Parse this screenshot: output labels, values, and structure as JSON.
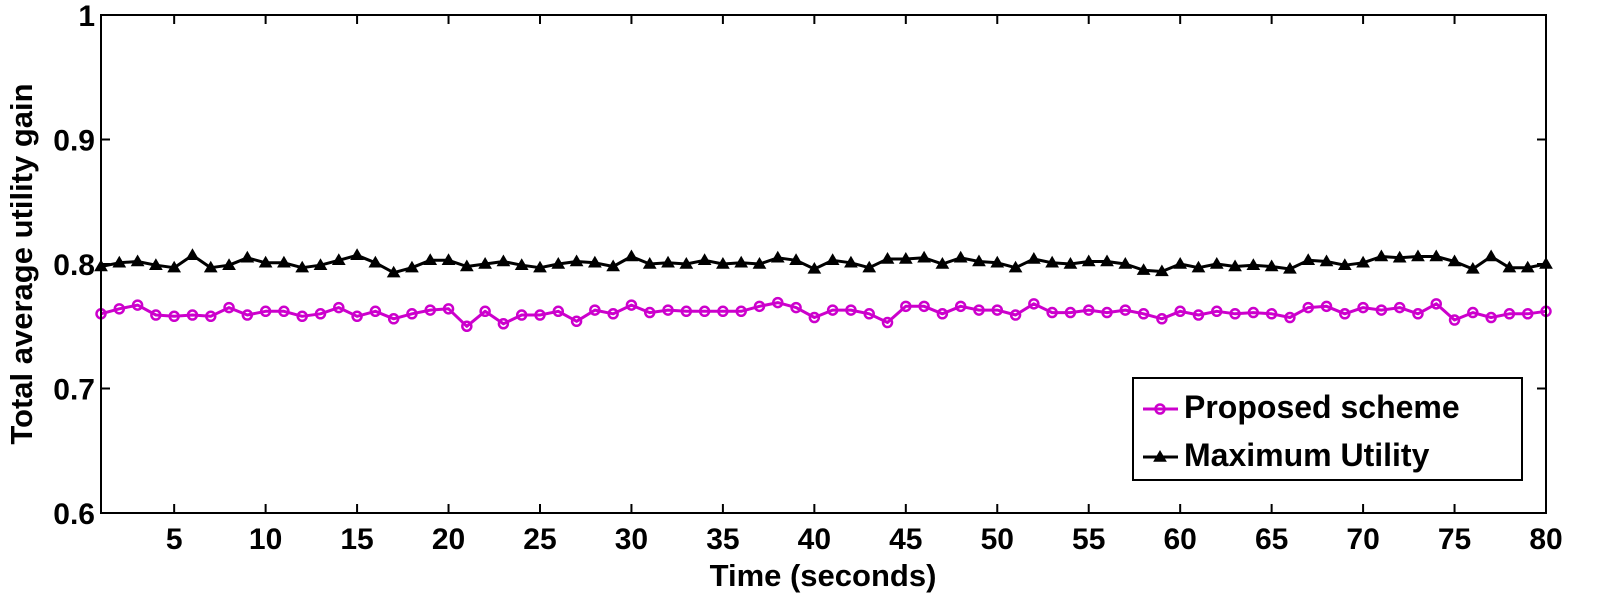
{
  "chart_data": {
    "type": "line",
    "title": "",
    "xlabel": "Time (seconds)",
    "ylabel": "Total average utility gain",
    "xlim": [
      1,
      80
    ],
    "ylim": [
      0.6,
      1.0
    ],
    "xticks": [
      5,
      10,
      15,
      20,
      25,
      30,
      35,
      40,
      45,
      50,
      55,
      60,
      65,
      70,
      75,
      80
    ],
    "yticks": [
      0.6,
      0.7,
      0.8,
      0.9,
      1.0
    ],
    "ytick_labels": [
      "0.6",
      "0.7",
      "0.8",
      "0.9",
      "1"
    ],
    "grid": false,
    "legend_position": "bottom-right",
    "x": [
      1,
      2,
      3,
      4,
      5,
      6,
      7,
      8,
      9,
      10,
      11,
      12,
      13,
      14,
      15,
      16,
      17,
      18,
      19,
      20,
      21,
      22,
      23,
      24,
      25,
      26,
      27,
      28,
      29,
      30,
      31,
      32,
      33,
      34,
      35,
      36,
      37,
      38,
      39,
      40,
      41,
      42,
      43,
      44,
      45,
      46,
      47,
      48,
      49,
      50,
      51,
      52,
      53,
      54,
      55,
      56,
      57,
      58,
      59,
      60,
      61,
      62,
      63,
      64,
      65,
      66,
      67,
      68,
      69,
      70,
      71,
      72,
      73,
      74,
      75,
      76,
      77,
      78,
      79,
      80
    ],
    "series": [
      {
        "name": "Proposed scheme",
        "color": "#cc00cc",
        "marker": "circle",
        "values": [
          0.76,
          0.764,
          0.767,
          0.759,
          0.758,
          0.759,
          0.758,
          0.765,
          0.759,
          0.762,
          0.762,
          0.758,
          0.76,
          0.765,
          0.758,
          0.762,
          0.756,
          0.76,
          0.763,
          0.764,
          0.75,
          0.762,
          0.752,
          0.759,
          0.759,
          0.762,
          0.754,
          0.763,
          0.76,
          0.767,
          0.761,
          0.763,
          0.762,
          0.762,
          0.762,
          0.762,
          0.766,
          0.769,
          0.765,
          0.757,
          0.763,
          0.763,
          0.76,
          0.753,
          0.766,
          0.766,
          0.76,
          0.766,
          0.763,
          0.763,
          0.759,
          0.768,
          0.761,
          0.761,
          0.763,
          0.761,
          0.763,
          0.76,
          0.756,
          0.762,
          0.759,
          0.762,
          0.76,
          0.761,
          0.76,
          0.757,
          0.765,
          0.766,
          0.76,
          0.765,
          0.763,
          0.765,
          0.76,
          0.768,
          0.755,
          0.761,
          0.757,
          0.76,
          0.76,
          0.762
        ]
      },
      {
        "name": "Maximum Utility",
        "color": "#000000",
        "marker": "triangle",
        "values": [
          0.798,
          0.801,
          0.802,
          0.799,
          0.797,
          0.807,
          0.797,
          0.799,
          0.805,
          0.801,
          0.801,
          0.797,
          0.799,
          0.803,
          0.807,
          0.801,
          0.793,
          0.797,
          0.803,
          0.803,
          0.798,
          0.8,
          0.802,
          0.799,
          0.797,
          0.8,
          0.802,
          0.801,
          0.798,
          0.806,
          0.8,
          0.801,
          0.8,
          0.803,
          0.8,
          0.801,
          0.8,
          0.805,
          0.803,
          0.796,
          0.803,
          0.801,
          0.797,
          0.804,
          0.804,
          0.805,
          0.8,
          0.805,
          0.802,
          0.801,
          0.797,
          0.804,
          0.801,
          0.8,
          0.802,
          0.802,
          0.8,
          0.795,
          0.794,
          0.8,
          0.797,
          0.8,
          0.798,
          0.799,
          0.798,
          0.796,
          0.803,
          0.802,
          0.799,
          0.801,
          0.806,
          0.805,
          0.806,
          0.806,
          0.802,
          0.796,
          0.806,
          0.797,
          0.797,
          0.8
        ]
      }
    ]
  }
}
